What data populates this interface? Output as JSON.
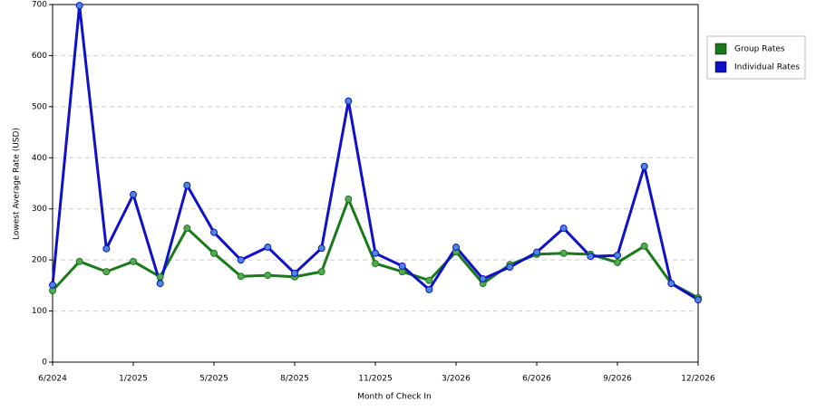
{
  "chart_data": {
    "type": "line",
    "x_label": "Month of Check In",
    "y_label": "Lowest Average Rate (USD)",
    "categories": [
      "6/2024",
      null,
      null,
      "1/2025",
      null,
      null,
      "5/2025",
      null,
      null,
      "8/2025",
      null,
      null,
      "11/2025",
      null,
      null,
      "3/2026",
      null,
      null,
      "6/2026",
      null,
      null,
      "9/2026",
      null,
      null,
      "12/2026"
    ],
    "series": [
      {
        "name": "Group Rates",
        "color": "#1a7a1a",
        "values": [
          140,
          197,
          177,
          197,
          167,
          262,
          213,
          168,
          170,
          167,
          177,
          319,
          193,
          177,
          160,
          216,
          154,
          191,
          211,
          213,
          211,
          195,
          227,
          154,
          126
        ]
      },
      {
        "name": "Individual Rates",
        "color": "#1010c8",
        "values": [
          151,
          698,
          222,
          328,
          154,
          346,
          254,
          200,
          225,
          174,
          223,
          511,
          213,
          188,
          142,
          225,
          163,
          186,
          215,
          262,
          207,
          209,
          383,
          154,
          122
        ]
      }
    ],
    "ylim": [
      0,
      700
    ],
    "yticks": [
      0,
      100,
      200,
      300,
      400,
      500,
      600,
      700
    ],
    "grid": true,
    "legend": "right"
  }
}
